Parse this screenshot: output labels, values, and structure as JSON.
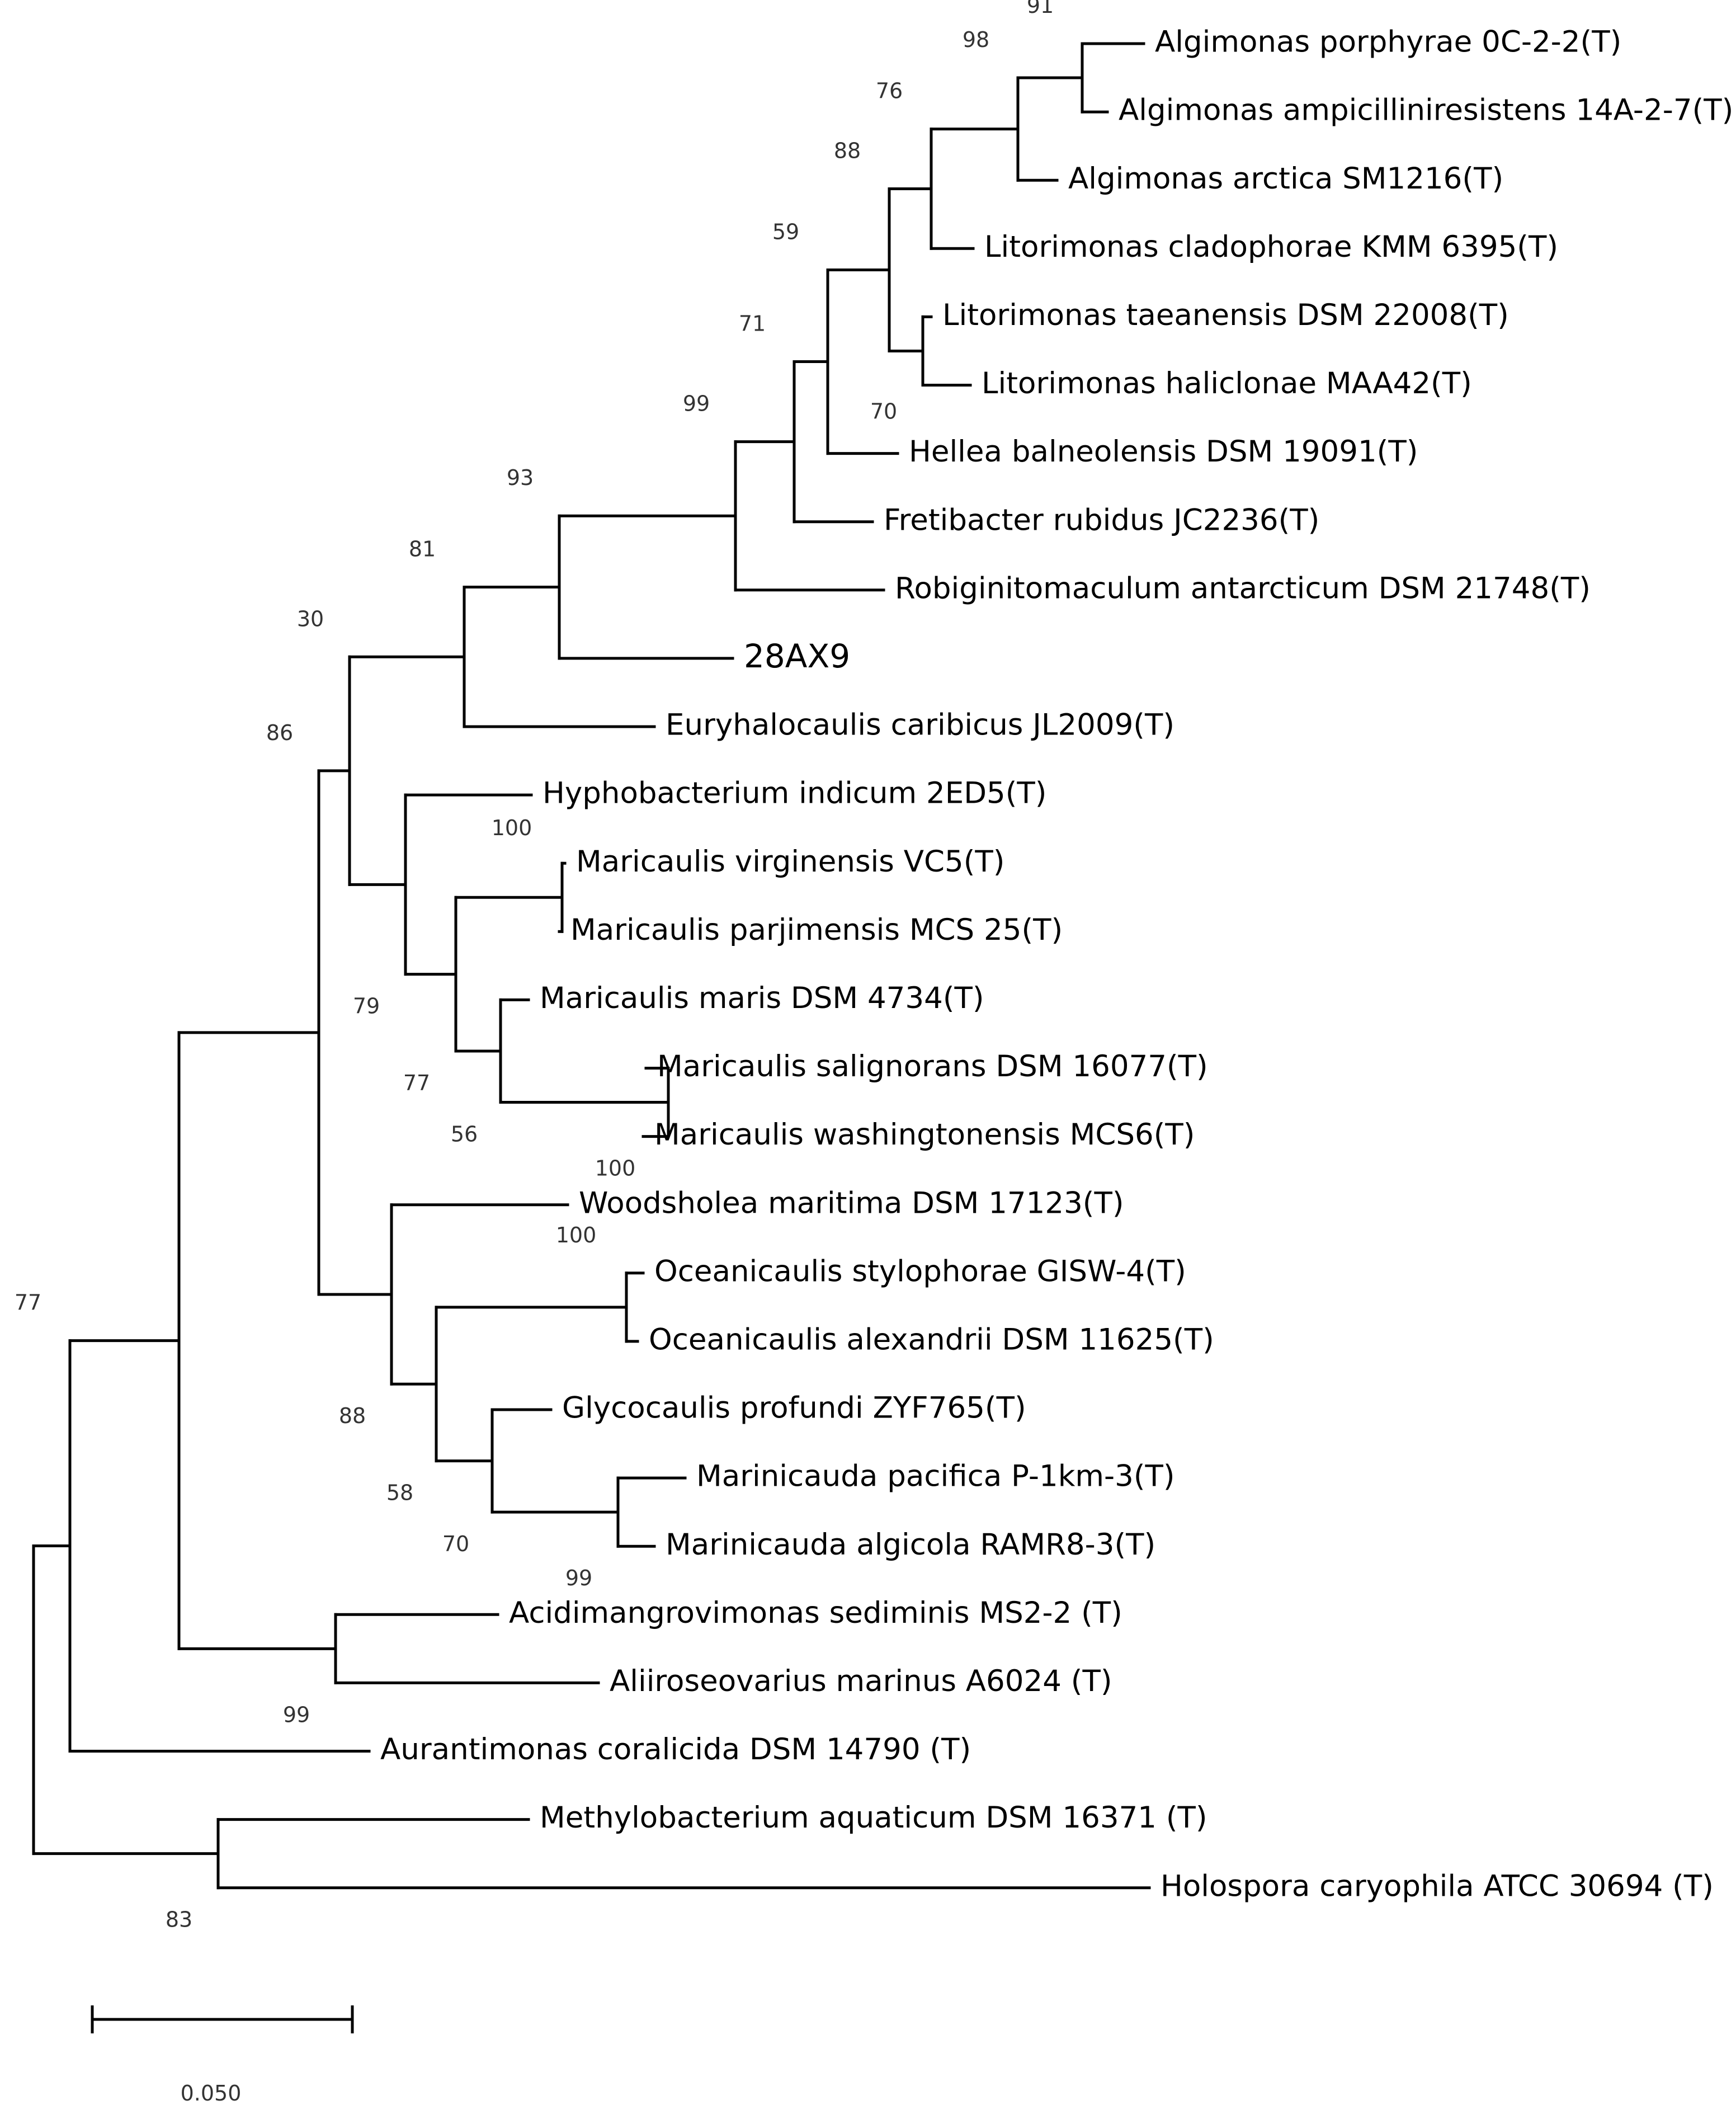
{
  "tree": {
    "taxa": [
      "Algimonas porphyrae 0C-2-2(T)",
      "Algimonas ampicilliniresistens 14A-2-7(T)",
      "Algimonas arctica SM1216(T)",
      "Litorimonas cladophorae KMM 6395(T)",
      "Litorimonas taeanensis DSM 22008(T)",
      "Litorimonas haliclonae MAA42(T)",
      "Hellea balneolensis DSM 19091(T)",
      "Fretibacter rubidus JC2236(T)",
      "Robiginitomaculum antarcticum DSM 21748(T)",
      "28AX9",
      "Euryhalocaulis caribicus JL2009(T)",
      "Hyphobacterium indicum 2ED5(T)",
      "Maricaulis virginensis VC5(T)",
      "Maricaulis parjimensis MCS 25(T)",
      "Maricaulis maris DSM 4734(T)",
      "Maricaulis salignorans DSM 16077(T)",
      "Maricaulis washingtonensis MCS6(T)",
      "Woodsholea maritima DSM 17123(T)",
      "Oceanicaulis stylophorae GISW-4(T)",
      "Oceanicaulis alexandrii DSM 11625(T)",
      "Glycocaulis profundi ZYF765(T)",
      "Marinicauda pacifica P-1km-3(T)",
      "Marinicauda algicola RAMR8-3(T)",
      "Acidimangrovimonas sediminis MS2-2 (T)",
      "Aliiroseovarius marinus A6024 (T)",
      "Aurantimonas coralicida DSM 14790 (T)",
      "Methylobacterium aquaticum DSM 16371 (T)",
      "Holospora caryophila ATCC 30694 (T)"
    ],
    "query_taxon": "28AX9",
    "bootstrap_values": [
      "91",
      "98",
      "76",
      "88",
      "70",
      "59",
      "71",
      "99",
      "93",
      "81",
      "30",
      "100",
      "79",
      "77",
      "56",
      "100",
      "86",
      "100",
      "88",
      "58",
      "70",
      "99",
      "77",
      "99",
      "83"
    ],
    "scale": {
      "value": 0.05,
      "label": "0.050"
    }
  }
}
